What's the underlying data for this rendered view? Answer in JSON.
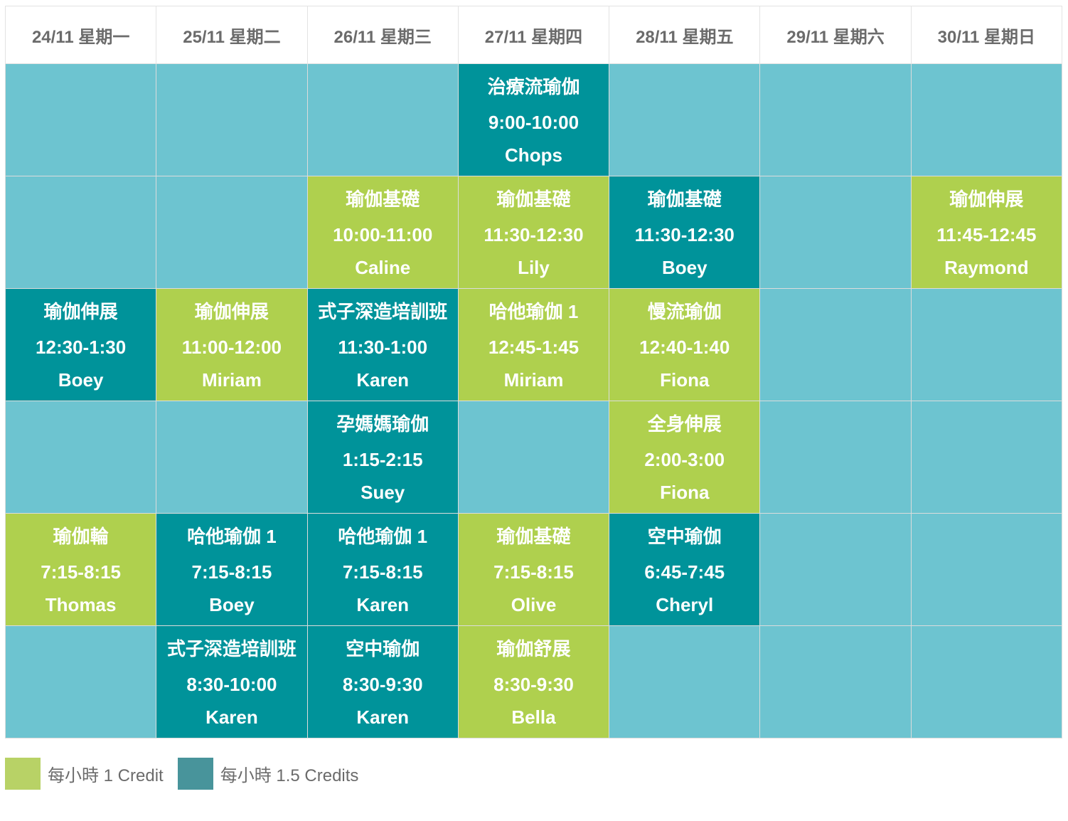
{
  "colors": {
    "empty": "#6dc4d0",
    "one_credit": "#afd04e",
    "one_half_credit": "#00939a"
  },
  "headers": [
    "24/11 星期一",
    "25/11 星期二",
    "26/11 星期三",
    "27/11 星期四",
    "28/11 星期五",
    "29/11 星期六",
    "30/11 星期日"
  ],
  "rows": [
    [
      null,
      null,
      null,
      {
        "type": "teal",
        "title": "治療流瑜伽",
        "time": "9:00-10:00",
        "teacher": "Chops"
      },
      null,
      null,
      null
    ],
    [
      null,
      null,
      {
        "type": "lime",
        "title": "瑜伽基礎",
        "time": "10:00-11:00",
        "teacher": "Caline"
      },
      {
        "type": "lime",
        "title": "瑜伽基礎",
        "time": "11:30-12:30",
        "teacher": "Lily"
      },
      {
        "type": "teal",
        "title": "瑜伽基礎",
        "time": "11:30-12:30",
        "teacher": "Boey"
      },
      null,
      {
        "type": "lime",
        "title": "瑜伽伸展",
        "time": "11:45-12:45",
        "teacher": "Raymond"
      }
    ],
    [
      {
        "type": "teal",
        "title": "瑜伽伸展",
        "time": "12:30-1:30",
        "teacher": "Boey"
      },
      {
        "type": "lime",
        "title": "瑜伽伸展",
        "time": "11:00-12:00",
        "teacher": "Miriam"
      },
      {
        "type": "teal",
        "title": "式子深造培訓班",
        "time": "11:30-1:00",
        "teacher": "Karen"
      },
      {
        "type": "lime",
        "title": "哈他瑜伽 1",
        "time": "12:45-1:45",
        "teacher": "Miriam"
      },
      {
        "type": "lime",
        "title": "慢流瑜伽",
        "time": "12:40-1:40",
        "teacher": "Fiona"
      },
      null,
      null
    ],
    [
      null,
      null,
      {
        "type": "teal",
        "title": "孕媽媽瑜伽",
        "time": "1:15-2:15",
        "teacher": "Suey"
      },
      null,
      {
        "type": "lime",
        "title": "全身伸展",
        "time": "2:00-3:00",
        "teacher": "Fiona"
      },
      null,
      null
    ],
    [
      {
        "type": "lime",
        "title": "瑜伽輪",
        "time": "7:15-8:15",
        "teacher": "Thomas"
      },
      {
        "type": "teal",
        "title": "哈他瑜伽 1",
        "time": "7:15-8:15",
        "teacher": "Boey"
      },
      {
        "type": "teal",
        "title": "哈他瑜伽 1",
        "time": "7:15-8:15",
        "teacher": "Karen"
      },
      {
        "type": "lime",
        "title": "瑜伽基礎",
        "time": "7:15-8:15",
        "teacher": "Olive"
      },
      {
        "type": "teal",
        "title": "空中瑜伽",
        "time": "6:45-7:45",
        "teacher": "Cheryl"
      },
      null,
      null
    ],
    [
      null,
      {
        "type": "teal",
        "title": "式子深造培訓班",
        "time": "8:30-10:00",
        "teacher": "Karen"
      },
      {
        "type": "teal",
        "title": "空中瑜伽",
        "time": "8:30-9:30",
        "teacher": "Karen"
      },
      {
        "type": "lime",
        "title": "瑜伽舒展",
        "time": "8:30-9:30",
        "teacher": "Bella"
      },
      null,
      null,
      null
    ]
  ],
  "legend": [
    {
      "label": "每小時 1 Credit",
      "color": "#b8d266"
    },
    {
      "label": "每小時 1.5 Credits",
      "color": "#48949b"
    }
  ]
}
